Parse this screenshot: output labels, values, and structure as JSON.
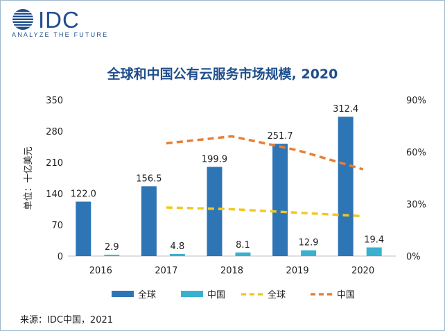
{
  "logo": {
    "text": "IDC",
    "tagline": "ANALYZE THE FUTURE"
  },
  "source": "来源：IDC中国，2021",
  "chart_data": {
    "type": "bar",
    "title": "全球和中国公有云服务市场规模, 2020",
    "ylabel": "单位：十亿美元",
    "categories": [
      "2016",
      "2017",
      "2018",
      "2019",
      "2020"
    ],
    "ylim": [
      0,
      350
    ],
    "yticks": [
      "0",
      "70",
      "140",
      "210",
      "280",
      "350"
    ],
    "y2lim": [
      0,
      0.9
    ],
    "y2ticks": [
      "0%",
      "30%",
      "60%",
      "90%"
    ],
    "grid": false,
    "legend_position": "bottom",
    "series": [
      {
        "name": "全球",
        "type": "bar",
        "axis": "left",
        "color": "#2e75b6",
        "values": [
          122.0,
          156.5,
          199.9,
          251.7,
          312.4
        ],
        "labels": [
          "122.0",
          "156.5",
          "199.9",
          "251.7",
          "312.4"
        ]
      },
      {
        "name": "中国",
        "type": "bar",
        "axis": "left",
        "color": "#3ab0cf",
        "values": [
          2.9,
          4.8,
          8.1,
          12.9,
          19.4
        ],
        "labels": [
          "2.9",
          "4.8",
          "8.1",
          "12.9",
          "19.4"
        ]
      },
      {
        "name": "全球",
        "type": "line",
        "axis": "right",
        "color": "#f2c81e",
        "dashed": true,
        "values": [
          null,
          0.28,
          0.27,
          0.25,
          0.23
        ]
      },
      {
        "name": "中国",
        "type": "line",
        "axis": "right",
        "color": "#e87e35",
        "dashed": true,
        "values": [
          null,
          0.65,
          0.69,
          0.61,
          0.5
        ]
      }
    ]
  }
}
